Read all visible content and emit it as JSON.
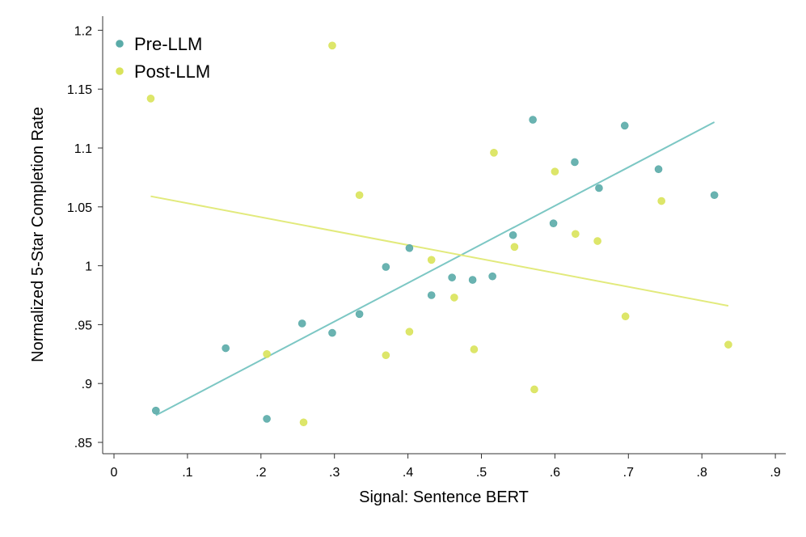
{
  "chart_data": {
    "type": "scatter",
    "xlabel": "Signal: Sentence BERT",
    "ylabel": "Normalized 5-Star Completion Rate",
    "xlim": [
      0,
      0.9
    ],
    "ylim": [
      0.85,
      1.2
    ],
    "x_ticks": [
      0,
      0.1,
      0.2,
      0.3,
      0.4,
      0.5,
      0.6,
      0.7,
      0.8,
      0.9
    ],
    "x_tick_labels": [
      "0",
      ".1",
      ".2",
      ".3",
      ".4",
      ".5",
      ".6",
      ".7",
      ".8",
      ".9"
    ],
    "y_ticks": [
      0.85,
      0.9,
      0.95,
      1.0,
      1.05,
      1.1,
      1.15,
      1.2
    ],
    "y_tick_labels": [
      ".85",
      ".9",
      ".95",
      "1",
      "1.05",
      "1.1",
      "1.15",
      "1.2"
    ],
    "grid": false,
    "legend_position": "top-left",
    "series": [
      {
        "name": "Pre-LLM",
        "color": "#5aaba8",
        "line_color": "#7cc7c4",
        "x": [
          0.057,
          0.152,
          0.208,
          0.256,
          0.297,
          0.334,
          0.37,
          0.402,
          0.432,
          0.46,
          0.488,
          0.515,
          0.543,
          0.57,
          0.598,
          0.627,
          0.66,
          0.695,
          0.741,
          0.817
        ],
        "y": [
          0.877,
          0.93,
          0.87,
          0.951,
          0.943,
          0.959,
          0.999,
          1.015,
          0.975,
          0.99,
          0.988,
          0.991,
          1.026,
          1.124,
          1.036,
          1.088,
          1.066,
          1.119,
          1.082,
          1.06
        ],
        "fit": {
          "x": [
            0.057,
            0.817
          ],
          "y": [
            0.873,
            1.122
          ]
        }
      },
      {
        "name": "Post-LLM",
        "color": "#d9e35a",
        "line_color": "#e2ea7c",
        "x": [
          0.05,
          0.208,
          0.258,
          0.297,
          0.334,
          0.37,
          0.402,
          0.432,
          0.463,
          0.49,
          0.517,
          0.545,
          0.572,
          0.6,
          0.628,
          0.658,
          0.696,
          0.745,
          0.836
        ],
        "y": [
          1.142,
          0.925,
          0.867,
          1.187,
          1.06,
          0.924,
          0.944,
          1.005,
          0.973,
          0.929,
          1.096,
          1.016,
          0.895,
          1.08,
          1.027,
          1.021,
          0.957,
          1.055,
          0.933
        ],
        "fit": {
          "x": [
            0.05,
            0.836
          ],
          "y": [
            1.059,
            0.966
          ]
        }
      }
    ]
  }
}
